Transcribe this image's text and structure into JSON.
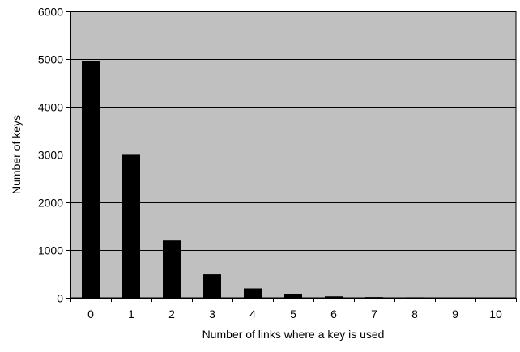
{
  "colors": {
    "plot_background": "#c0c0c0",
    "bar": "#000000",
    "gridline": "#000000",
    "axis": "#000000",
    "text": "#000000"
  },
  "chart_data": {
    "type": "bar",
    "categories": [
      "0",
      "1",
      "2",
      "3",
      "4",
      "5",
      "6",
      "7",
      "8",
      "9",
      "10"
    ],
    "values": [
      4950,
      3010,
      1200,
      490,
      195,
      85,
      30,
      15,
      10,
      8,
      5
    ],
    "title": "",
    "xlabel": "Number of links where a key is used",
    "ylabel": "Number of keys",
    "ylim": [
      0,
      6000
    ],
    "yticks": [
      0,
      1000,
      2000,
      3000,
      4000,
      5000,
      6000
    ],
    "grid": true,
    "legend": "none"
  }
}
